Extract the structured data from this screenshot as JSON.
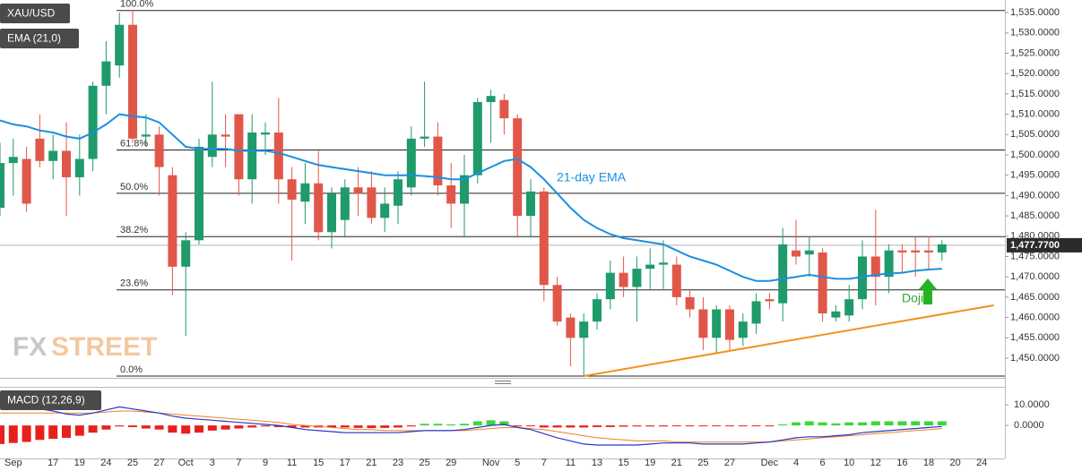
{
  "chart_data": [
    {
      "type": "candlestick",
      "title": "XAU/USD",
      "categories": [
        null,
        "Sep",
        null,
        null,
        "17",
        null,
        "19",
        null,
        "24",
        null,
        "25",
        null,
        "27",
        null,
        "Oct",
        null,
        "3",
        null,
        "7",
        null,
        "9",
        null,
        "11",
        null,
        "15",
        null,
        "17",
        null,
        "21",
        null,
        "23",
        null,
        "25",
        null,
        "29",
        null,
        null,
        "Nov",
        null,
        "5",
        null,
        "7",
        null,
        "11",
        null,
        "13",
        null,
        "15",
        null,
        "19",
        null,
        "21",
        null,
        "25",
        null,
        "27",
        null,
        null,
        "Dec",
        null,
        "4",
        null,
        "6",
        null,
        "10",
        null,
        "12",
        null,
        "16",
        null,
        "18",
        null,
        "20",
        null,
        "24"
      ],
      "open": [
        1487,
        1498,
        1499,
        1504,
        1498.5,
        1501,
        1494.5,
        1499,
        1517,
        1522,
        1532,
        1504.5,
        1505,
        1495,
        1472.5,
        1479,
        1499.5,
        1505,
        1510,
        1494,
        1505,
        1505.5,
        1494,
        1488.5,
        1493,
        1481,
        1484,
        1492,
        1492,
        1484.5,
        1487.5,
        1492,
        1504,
        1504.5,
        1492.5,
        1488,
        1495,
        1513,
        1513.5,
        1509,
        1485,
        1491,
        1468,
        1460,
        1455,
        1459,
        1464.5,
        1471,
        1467.5,
        1472,
        1473,
        1473,
        1465,
        1462,
        1455,
        1462,
        1455,
        1458.5,
        1464.5,
        1463.5,
        1476.5,
        1475.5,
        1476,
        1460,
        1460.5,
        1464.5,
        1475,
        1470,
        1476.5,
        1476.5,
        1476.5,
        1476,
        null,
        null,
        null
      ],
      "high": [
        1503,
        1504,
        1502,
        1510,
        1505,
        1508,
        1505,
        1518,
        1528,
        1535,
        1535.5,
        1510,
        1507,
        1497,
        1481,
        1504,
        1518,
        1510,
        1510,
        1510,
        1508,
        1514,
        1497,
        1498,
        1501,
        1492,
        1494,
        1497,
        1496,
        1492,
        1496,
        1507,
        1518,
        1508,
        1498,
        1500,
        1514,
        1516,
        1515,
        1510,
        1494,
        1492,
        1470,
        1461,
        1461,
        1466,
        1474,
        1475,
        1475,
        1477,
        1479,
        1475,
        1467,
        1465,
        1463,
        1463,
        1461,
        1466,
        1466,
        1482,
        1484,
        1480,
        1477,
        1463,
        1468,
        1479,
        1486.5,
        1478,
        1478,
        1480,
        1480,
        1479,
        null,
        null,
        null
      ],
      "low": [
        1485,
        1490,
        1486,
        1497,
        1494,
        1485,
        1490,
        1496,
        1510,
        1519,
        1503,
        1502,
        1490,
        1465.5,
        1455.5,
        1478,
        1497,
        1497,
        1490,
        1488,
        1500,
        1488,
        1474,
        1483,
        1479,
        1477,
        1480,
        1485,
        1483,
        1481,
        1483,
        1490,
        1502,
        1490,
        1482,
        1480,
        1493,
        1503,
        1505,
        1480,
        1480,
        1464,
        1458,
        1448,
        1445.6,
        1457,
        1462,
        1465,
        1459,
        1467,
        1467,
        1463,
        1460,
        1452,
        1451,
        1452,
        1453,
        1456,
        1462,
        1459,
        1473,
        1470,
        1459,
        1459,
        1459,
        1462,
        1463,
        1466,
        1471,
        1470,
        1472,
        1474,
        null,
        null,
        null
      ],
      "close": [
        1498,
        1499.5,
        1488,
        1498.5,
        1501,
        1494.5,
        1499,
        1517,
        1523,
        1532,
        1504,
        1505,
        1497,
        1472.5,
        1479,
        1502,
        1505,
        1504.5,
        1494,
        1505.5,
        1505.5,
        1494,
        1489,
        1493,
        1481,
        1490.5,
        1492,
        1490.5,
        1484.5,
        1488,
        1494,
        1504,
        1504.5,
        1492.5,
        1488,
        1495,
        1513,
        1514.5,
        1509,
        1485,
        1491,
        1468,
        1459,
        1455,
        1459,
        1464.5,
        1471,
        1467.5,
        1472,
        1473,
        1473.5,
        1465,
        1462,
        1455,
        1462,
        1454.5,
        1459,
        1464,
        1464,
        1478,
        1475,
        1476.5,
        1461,
        1461.5,
        1464.5,
        1475,
        1470,
        1476.5,
        1476,
        1476,
        1476,
        1478,
        null,
        null,
        null
      ],
      "up_color": "#1f9a6b",
      "down_color": "#e0574a",
      "series": [
        {
          "name": "EMA (21,0)",
          "color": "#1b8fe0",
          "values": [
            1508.5,
            1507.5,
            1507,
            1506,
            1505.5,
            1504.5,
            1504,
            1505.5,
            1507.5,
            1510,
            1509.5,
            1509.2,
            1508,
            1505,
            1502,
            1501.5,
            1501.5,
            1501.5,
            1501,
            1501,
            1501,
            1500.5,
            1499.5,
            1498.5,
            1497.5,
            1497,
            1496.5,
            1496,
            1495.5,
            1495,
            1495,
            1495,
            1494.8,
            1494.5,
            1494,
            1494,
            1495.5,
            1497,
            1498.5,
            1499,
            1497,
            1494,
            1490.5,
            1487,
            1484,
            1482,
            1480.5,
            1479.5,
            1479,
            1478.5,
            1478,
            1476.5,
            1475,
            1474,
            1473,
            1471.5,
            1470,
            1469,
            1469,
            1469.5,
            1470,
            1470.5,
            1470,
            1469.5,
            1469.5,
            1470,
            1470.5,
            1470.8,
            1471,
            1471.5,
            1471.8,
            1472,
            null,
            null,
            null
          ]
        }
      ],
      "ylim": [
        1445.15,
        1538.1
      ],
      "yticks": [
        {
          "value": 1450,
          "label": "1,450.0000"
        },
        {
          "value": 1455,
          "label": "1,455.0000"
        },
        {
          "value": 1460,
          "label": "1,460.0000"
        },
        {
          "value": 1465,
          "label": "1,465.0000"
        },
        {
          "value": 1470,
          "label": "1,470.0000"
        },
        {
          "value": 1475,
          "label": "1,475.0000"
        },
        {
          "value": 1480,
          "label": "1,480.0000"
        },
        {
          "value": 1485,
          "label": "1,485.0000"
        },
        {
          "value": 1490,
          "label": "1,490.0000"
        },
        {
          "value": 1495,
          "label": "1,495.0000"
        },
        {
          "value": 1500,
          "label": "1,500.0000"
        },
        {
          "value": 1505,
          "label": "1,505.0000"
        },
        {
          "value": 1510,
          "label": "1,510.0000"
        },
        {
          "value": 1515,
          "label": "1,515.0000"
        },
        {
          "value": 1520,
          "label": "1,520.0000"
        },
        {
          "value": 1525,
          "label": "1,525.0000"
        },
        {
          "value": 1530,
          "label": "1,530.0000"
        },
        {
          "value": 1535,
          "label": "1,535.0000"
        }
      ],
      "last_price": {
        "value": 1477.77,
        "label": "1,477.7700"
      },
      "fib_levels": [
        {
          "ratio_label": "100.0%",
          "price": 1535.5
        },
        {
          "ratio_label": "61.8%",
          "price": 1501.2
        },
        {
          "ratio_label": "50.0%",
          "price": 1490.55
        },
        {
          "ratio_label": "38.2%",
          "price": 1479.9
        },
        {
          "ratio_label": "23.6%",
          "price": 1466.8
        },
        {
          "ratio_label": "0.0%",
          "price": 1445.6
        }
      ],
      "support_line": {
        "color": "#f5901e",
        "x": [
          44,
          74.9
        ],
        "values": [
          1445.6,
          1463
        ]
      },
      "annotations": {
        "ema": "21-day EMA",
        "doji": "Doji"
      },
      "logo": [
        "FX",
        "STREET"
      ]
    },
    {
      "type": "macd",
      "title": "MACD (12,26,9)",
      "histogram": [
        -9,
        -8.5,
        -8,
        -7,
        -6.5,
        -6,
        -5,
        -3.5,
        -2,
        -0.5,
        -0.8,
        -1.5,
        -2,
        -3.5,
        -4,
        -3.5,
        -2.5,
        -2,
        -1.5,
        -1,
        -0.5,
        -0.8,
        -1,
        -1,
        -1,
        -1,
        -1,
        -1.2,
        -1.3,
        -1.2,
        -1,
        -0.5,
        0.8,
        0.8,
        0.5,
        0.8,
        2,
        2.5,
        2,
        -0.5,
        -0.3,
        -1,
        -1,
        -1,
        -1,
        -0.8,
        -0.8,
        -0.6,
        -0.5,
        -0.5,
        -0.5,
        -0.3,
        -0.3,
        -0.3,
        -0.2,
        -0.2,
        -0.2,
        -0.2,
        -0.2,
        0.5,
        1.5,
        2,
        1.5,
        1,
        1.5,
        1.5,
        2,
        2,
        2,
        2,
        2,
        2,
        null,
        null,
        null
      ],
      "pos_color": "#3cd63c",
      "neg_color": "#e8201c",
      "macd": {
        "color": "#2a35c8",
        "values": [
          11,
          10,
          9,
          8,
          7,
          5.5,
          5,
          6,
          7.5,
          9,
          8,
          7,
          6,
          4.5,
          3.5,
          3,
          2.5,
          2,
          1.5,
          1,
          0.5,
          0,
          -1,
          -2,
          -2.5,
          -3,
          -3.5,
          -3.5,
          -3.5,
          -3.5,
          -3.5,
          -3,
          -2.5,
          -2.5,
          -2.5,
          -2,
          -1,
          0,
          0.5,
          -1,
          -2,
          -4,
          -6,
          -7.5,
          -9,
          -9.5,
          -9.5,
          -9.5,
          -9.5,
          -9,
          -8.5,
          -8.5,
          -8.5,
          -9,
          -9,
          -9,
          -9,
          -8.5,
          -8,
          -7,
          -6,
          -5.5,
          -5.5,
          -5,
          -4.5,
          -3.5,
          -3,
          -2.5,
          -2,
          -1.5,
          -1,
          -0.5,
          null,
          null,
          null
        ]
      },
      "signal": {
        "color": "#f08020",
        "values": [
          6,
          6,
          6,
          6,
          6,
          6,
          6,
          6,
          6.5,
          7,
          7,
          6.5,
          6,
          5.5,
          5,
          4.5,
          4,
          3.5,
          3,
          2.5,
          2,
          1.5,
          0.5,
          0,
          -0.5,
          -1,
          -1.5,
          -2,
          -2,
          -2.5,
          -2.5,
          -2.5,
          -2.5,
          -2.5,
          -2.5,
          -2.5,
          -2,
          -1.5,
          -1,
          -1,
          -1.5,
          -2,
          -3,
          -4,
          -5,
          -6,
          -6.5,
          -7,
          -7.5,
          -7.5,
          -7.5,
          -8,
          -8,
          -8,
          -8,
          -8,
          -8,
          -8,
          -8,
          -7.5,
          -7,
          -6.5,
          -6,
          -5.5,
          -5,
          -4.5,
          -4,
          -3.5,
          -3,
          -2.5,
          -2,
          -1.5,
          null,
          null,
          null
        ]
      },
      "ylim": [
        -16,
        18.7
      ],
      "yticks": [
        {
          "value": 10,
          "label": "10.0000"
        },
        {
          "value": 0,
          "label": "0.0000"
        }
      ]
    }
  ]
}
